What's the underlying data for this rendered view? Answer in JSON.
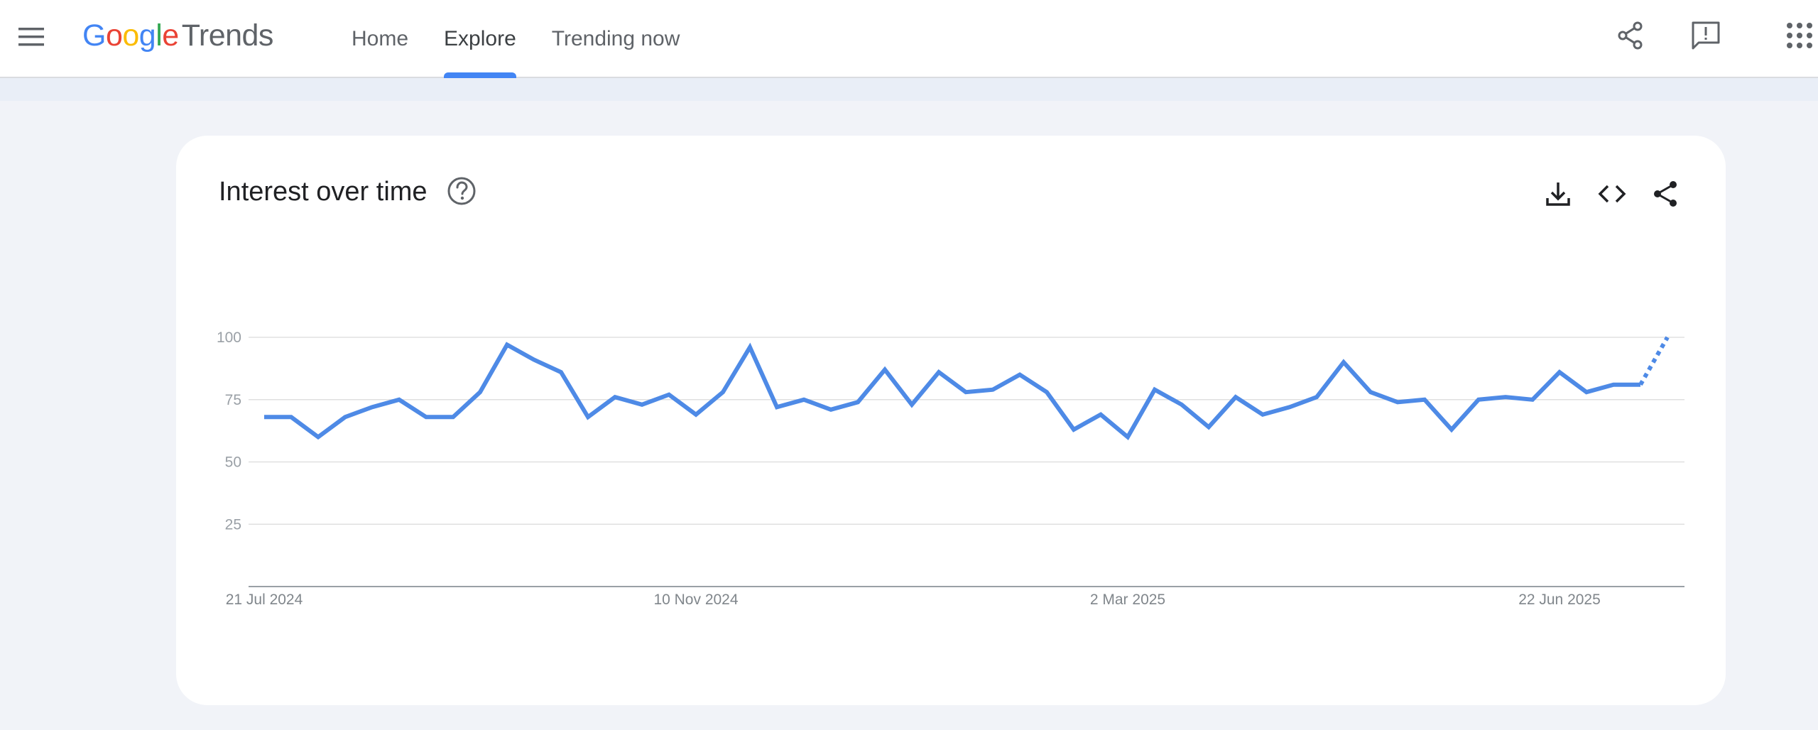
{
  "header": {
    "logo": {
      "google_letters": [
        {
          "ch": "G",
          "color": "#4285F4"
        },
        {
          "ch": "o",
          "color": "#EA4335"
        },
        {
          "ch": "o",
          "color": "#FBBC05"
        },
        {
          "ch": "g",
          "color": "#4285F4"
        },
        {
          "ch": "l",
          "color": "#34A853"
        },
        {
          "ch": "e",
          "color": "#EA4335"
        }
      ],
      "product": "Trends"
    },
    "nav": [
      {
        "label": "Home",
        "active": false
      },
      {
        "label": "Explore",
        "active": true
      },
      {
        "label": "Trending now",
        "active": false
      }
    ],
    "icons": [
      "menu-icon",
      "share-icon",
      "feedback-icon",
      "apps-icon"
    ]
  },
  "card": {
    "title": "Interest over time",
    "icons": [
      "help-icon",
      "download-icon",
      "embed-icon",
      "share-icon"
    ]
  },
  "colors": {
    "accent": "#4285F4",
    "line": "#4e8ae6",
    "grid": "#e0e0e0",
    "axis_text": "#9aa0a6"
  },
  "chart_data": {
    "type": "line",
    "title": "",
    "xlabel": "",
    "ylabel": "",
    "ylim": [
      0,
      100
    ],
    "yticks": [
      25,
      50,
      75,
      100
    ],
    "x_tick_labels": [
      {
        "label": "21 Jul 2024",
        "index": 0
      },
      {
        "label": "10 Nov 2024",
        "index": 16
      },
      {
        "label": "2 Mar 2025",
        "index": 32
      },
      {
        "label": "22 Jun 2025",
        "index": 48
      }
    ],
    "grid": true,
    "series": [
      {
        "values": [
          68,
          68,
          60,
          68,
          72,
          75,
          68,
          68,
          78,
          97,
          91,
          86,
          68,
          76,
          73,
          77,
          69,
          78,
          96,
          72,
          75,
          71,
          74,
          87,
          73,
          86,
          78,
          79,
          85,
          78,
          63,
          69,
          60,
          79,
          73,
          64,
          76,
          69,
          72,
          76,
          90,
          78,
          74,
          75,
          63,
          75,
          76,
          75,
          86,
          78,
          81,
          81,
          100
        ],
        "partial_from_index": 51
      }
    ]
  }
}
